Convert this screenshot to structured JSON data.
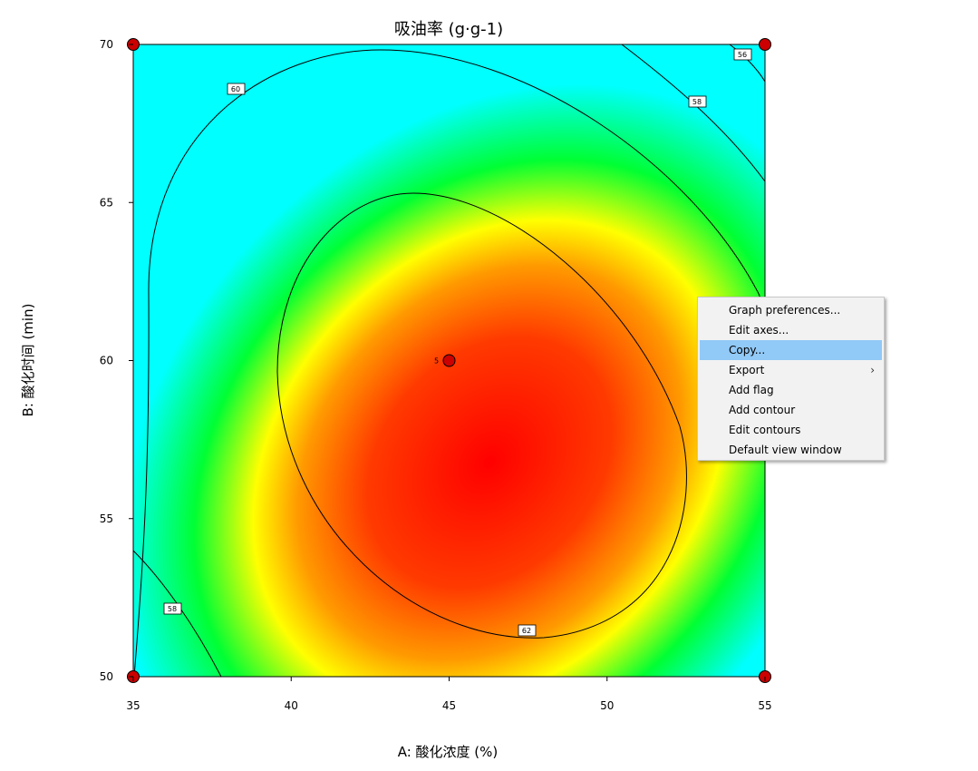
{
  "chart_data": {
    "type": "contour",
    "title": "吸油率 (g·g-1)",
    "xlabel": "A: 酸化浓度 (%)",
    "ylabel": "B: 酸化时间 (min)",
    "xlim": [
      35,
      55
    ],
    "ylim": [
      50,
      70
    ],
    "x_ticks": [
      "35",
      "40",
      "45",
      "50",
      "55"
    ],
    "y_ticks": [
      "50",
      "55",
      "60",
      "65",
      "70"
    ],
    "contour_levels": [
      "56",
      "58",
      "60",
      "62"
    ],
    "design_points": [
      {
        "x": 35,
        "y": 50
      },
      {
        "x": 55,
        "y": 50
      },
      {
        "x": 35,
        "y": 70
      },
      {
        "x": 55,
        "y": 70
      },
      {
        "x": 45,
        "y": 60,
        "label": "5"
      }
    ],
    "colors": {
      "high": "#ff0000",
      "mid": "#ffff00",
      "low": "#00ff40",
      "lowest": "#00ffff"
    },
    "grid": false
  },
  "context_menu": {
    "items": [
      {
        "label": "Graph preferences..."
      },
      {
        "label": "Edit axes..."
      },
      {
        "label": "Copy..."
      },
      {
        "label": "Export",
        "submenu_arrow": "›"
      },
      {
        "label": "Add flag"
      },
      {
        "label": "Add contour"
      },
      {
        "label": "Edit contours"
      },
      {
        "label": "Default view window"
      }
    ],
    "highlighted": "Copy..."
  }
}
